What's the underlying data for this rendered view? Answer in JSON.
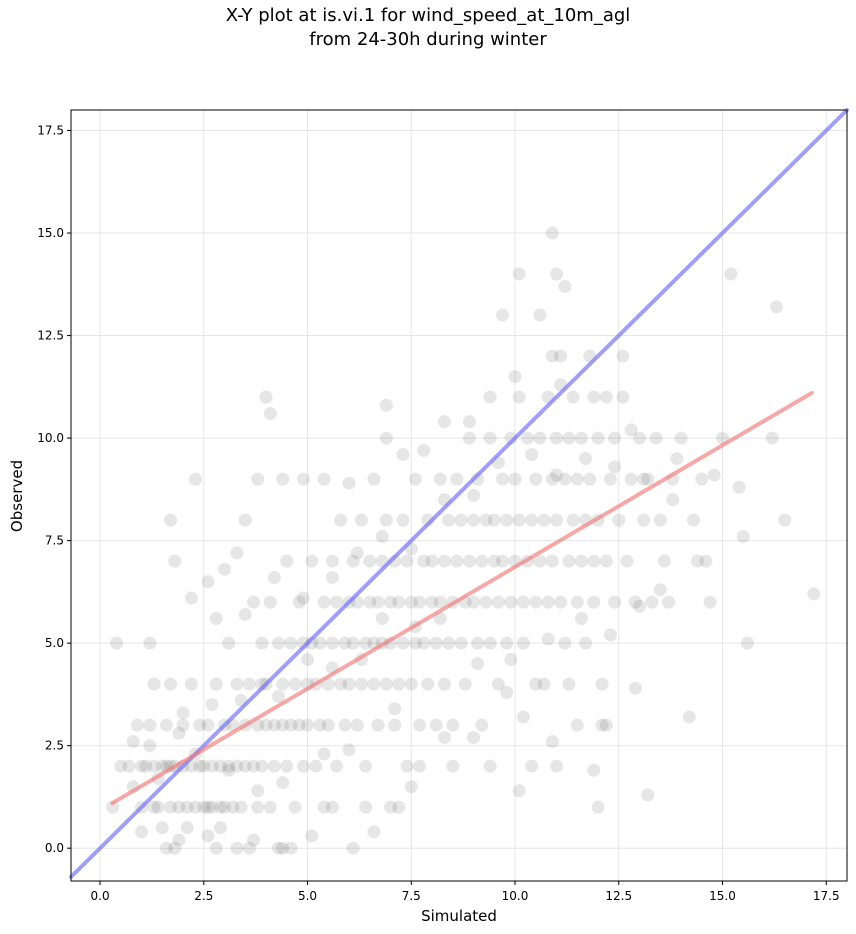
{
  "chart_data": {
    "type": "scatter",
    "title": "X-Y plot at is.vi.1 for wind_speed_at_10m_agl",
    "subtitle": "from 24-30h during winter",
    "xlabel": "Simulated",
    "ylabel": "Observed",
    "xlim": [
      -0.7,
      18.0
    ],
    "ylim": [
      -0.8,
      18.0
    ],
    "xticks": [
      0.0,
      2.5,
      5.0,
      7.5,
      10.0,
      12.5,
      15.0,
      17.5
    ],
    "yticks": [
      0.0,
      2.5,
      5.0,
      7.5,
      10.0,
      12.5,
      15.0,
      17.5
    ],
    "xtick_labels": [
      "0.0",
      "2.5",
      "5.0",
      "7.5",
      "10.0",
      "12.5",
      "15.0",
      "17.5"
    ],
    "ytick_labels": [
      "0.0",
      "2.5",
      "5.0",
      "7.5",
      "10.0",
      "12.5",
      "15.0",
      "17.5"
    ],
    "grid": true,
    "colors": {
      "points": "#3a3a3a",
      "identity_line": "#6b6bf0",
      "fit_line": "#f07a7a"
    },
    "reference_lines": [
      {
        "kind": "identity",
        "x": [
          -0.7,
          18.0
        ],
        "y": [
          -0.7,
          18.0
        ]
      },
      {
        "kind": "fit",
        "x": [
          0.3,
          17.15
        ],
        "y": [
          1.1,
          11.1
        ]
      }
    ],
    "points": [
      [
        0.3,
        1.0
      ],
      [
        0.5,
        2.0
      ],
      [
        0.7,
        2.0
      ],
      [
        0.8,
        1.5
      ],
      [
        0.9,
        3.0
      ],
      [
        1.0,
        2.0
      ],
      [
        1.0,
        1.0
      ],
      [
        1.1,
        2.0
      ],
      [
        1.2,
        3.0
      ],
      [
        1.3,
        2.0
      ],
      [
        1.3,
        1.0
      ],
      [
        1.4,
        1.0
      ],
      [
        1.5,
        2.0
      ],
      [
        1.5,
        0.5
      ],
      [
        1.6,
        2.0
      ],
      [
        1.6,
        3.0
      ],
      [
        1.7,
        2.0
      ],
      [
        1.7,
        1.0
      ],
      [
        1.8,
        0.0
      ],
      [
        1.8,
        2.0
      ],
      [
        1.9,
        1.0
      ],
      [
        2.0,
        2.0
      ],
      [
        2.0,
        3.0
      ],
      [
        2.1,
        1.0
      ],
      [
        2.2,
        2.0
      ],
      [
        2.2,
        4.0
      ],
      [
        2.3,
        1.0
      ],
      [
        2.4,
        2.0
      ],
      [
        2.4,
        3.0
      ],
      [
        2.5,
        1.0
      ],
      [
        2.5,
        2.0
      ],
      [
        2.6,
        1.0
      ],
      [
        2.6,
        3.0
      ],
      [
        2.7,
        2.0
      ],
      [
        2.7,
        1.0
      ],
      [
        2.8,
        0.0
      ],
      [
        2.8,
        4.0
      ],
      [
        2.9,
        1.0
      ],
      [
        2.9,
        2.0
      ],
      [
        3.0,
        3.0
      ],
      [
        3.0,
        1.0
      ],
      [
        3.1,
        2.0
      ],
      [
        3.1,
        5.0
      ],
      [
        3.2,
        1.0
      ],
      [
        3.2,
        3.0
      ],
      [
        3.3,
        2.0
      ],
      [
        3.3,
        4.0
      ],
      [
        3.4,
        1.0
      ],
      [
        3.5,
        3.0
      ],
      [
        3.5,
        2.0
      ],
      [
        3.6,
        0.0
      ],
      [
        3.6,
        4.0
      ],
      [
        3.7,
        2.0
      ],
      [
        3.7,
        6.0
      ],
      [
        3.8,
        3.0
      ],
      [
        3.8,
        1.0
      ],
      [
        3.9,
        2.0
      ],
      [
        3.9,
        5.0
      ],
      [
        4.0,
        3.0
      ],
      [
        4.0,
        4.0
      ],
      [
        4.1,
        1.0
      ],
      [
        4.1,
        6.0
      ],
      [
        4.2,
        2.0
      ],
      [
        4.2,
        3.0
      ],
      [
        4.3,
        5.0
      ],
      [
        4.3,
        0.0
      ],
      [
        4.4,
        3.0
      ],
      [
        4.4,
        4.0
      ],
      [
        4.5,
        2.0
      ],
      [
        4.5,
        7.0
      ],
      [
        4.6,
        3.0
      ],
      [
        4.6,
        5.0
      ],
      [
        4.7,
        1.0
      ],
      [
        4.7,
        4.0
      ],
      [
        4.8,
        3.0
      ],
      [
        4.8,
        6.0
      ],
      [
        4.9,
        2.0
      ],
      [
        4.9,
        5.0
      ],
      [
        5.0,
        4.0
      ],
      [
        5.0,
        3.0
      ],
      [
        5.1,
        5.0
      ],
      [
        5.1,
        7.0
      ],
      [
        5.2,
        2.0
      ],
      [
        5.2,
        4.0
      ],
      [
        5.3,
        3.0
      ],
      [
        5.3,
        5.0
      ],
      [
        5.4,
        6.0
      ],
      [
        5.4,
        1.0
      ],
      [
        5.5,
        4.0
      ],
      [
        5.5,
        3.0
      ],
      [
        5.6,
        5.0
      ],
      [
        5.6,
        7.0
      ],
      [
        5.7,
        2.0
      ],
      [
        5.7,
        6.0
      ],
      [
        5.8,
        4.0
      ],
      [
        5.8,
        8.0
      ],
      [
        5.9,
        5.0
      ],
      [
        5.9,
        3.0
      ],
      [
        6.0,
        6.0
      ],
      [
        6.0,
        4.0
      ],
      [
        6.1,
        5.0
      ],
      [
        6.1,
        7.0
      ],
      [
        6.2,
        3.0
      ],
      [
        6.2,
        6.0
      ],
      [
        6.3,
        4.0
      ],
      [
        6.3,
        8.0
      ],
      [
        6.4,
        5.0
      ],
      [
        6.4,
        2.0
      ],
      [
        6.5,
        6.0
      ],
      [
        6.5,
        7.0
      ],
      [
        6.6,
        4.0
      ],
      [
        6.6,
        5.0
      ],
      [
        6.7,
        6.0
      ],
      [
        6.7,
        3.0
      ],
      [
        6.8,
        7.0
      ],
      [
        6.8,
        5.0
      ],
      [
        6.9,
        4.0
      ],
      [
        6.9,
        8.0
      ],
      [
        7.0,
        6.0
      ],
      [
        7.0,
        5.0
      ],
      [
        7.1,
        7.0
      ],
      [
        7.1,
        3.0
      ],
      [
        7.2,
        4.0
      ],
      [
        7.2,
        6.0
      ],
      [
        7.3,
        5.0
      ],
      [
        7.3,
        8.0
      ],
      [
        7.4,
        7.0
      ],
      [
        7.4,
        2.0
      ],
      [
        7.5,
        6.0
      ],
      [
        7.5,
        4.0
      ],
      [
        7.6,
        5.0
      ],
      [
        7.6,
        9.0
      ],
      [
        7.7,
        6.0
      ],
      [
        7.7,
        3.0
      ],
      [
        7.8,
        7.0
      ],
      [
        7.8,
        5.0
      ],
      [
        7.9,
        4.0
      ],
      [
        7.9,
        8.0
      ],
      [
        8.0,
        6.0
      ],
      [
        8.0,
        7.0
      ],
      [
        8.1,
        5.0
      ],
      [
        8.1,
        3.0
      ],
      [
        8.2,
        6.0
      ],
      [
        8.2,
        9.0
      ],
      [
        8.3,
        7.0
      ],
      [
        8.3,
        4.0
      ],
      [
        8.4,
        8.0
      ],
      [
        8.4,
        5.0
      ],
      [
        8.5,
        6.0
      ],
      [
        8.5,
        3.0
      ],
      [
        8.6,
        7.0
      ],
      [
        8.6,
        9.0
      ],
      [
        8.7,
        5.0
      ],
      [
        8.7,
        8.0
      ],
      [
        8.8,
        6.0
      ],
      [
        8.8,
        4.0
      ],
      [
        8.9,
        7.0
      ],
      [
        8.9,
        10.0
      ],
      [
        9.0,
        8.0
      ],
      [
        9.0,
        6.0
      ],
      [
        9.1,
        5.0
      ],
      [
        9.1,
        9.0
      ],
      [
        9.2,
        7.0
      ],
      [
        9.2,
        3.0
      ],
      [
        9.3,
        8.0
      ],
      [
        9.3,
        6.0
      ],
      [
        9.4,
        10.0
      ],
      [
        9.4,
        5.0
      ],
      [
        9.5,
        7.0
      ],
      [
        9.5,
        8.0
      ],
      [
        9.6,
        6.0
      ],
      [
        9.6,
        4.0
      ],
      [
        9.7,
        9.0
      ],
      [
        9.7,
        7.0
      ],
      [
        9.8,
        8.0
      ],
      [
        9.8,
        5.0
      ],
      [
        9.9,
        10.0
      ],
      [
        9.9,
        6.0
      ],
      [
        10.0,
        7.0
      ],
      [
        10.0,
        9.0
      ],
      [
        10.1,
        8.0
      ],
      [
        10.1,
        11.0
      ],
      [
        10.2,
        6.0
      ],
      [
        10.2,
        5.0
      ],
      [
        10.3,
        10.0
      ],
      [
        10.3,
        7.0
      ],
      [
        10.4,
        8.0
      ],
      [
        10.4,
        2.0
      ],
      [
        10.5,
        9.0
      ],
      [
        10.5,
        6.0
      ],
      [
        10.6,
        10.0
      ],
      [
        10.6,
        7.0
      ],
      [
        10.7,
        8.0
      ],
      [
        10.7,
        4.0
      ],
      [
        10.8,
        11.0
      ],
      [
        10.8,
        6.0
      ],
      [
        10.9,
        9.0
      ],
      [
        10.9,
        7.0
      ],
      [
        11.0,
        10.0
      ],
      [
        11.0,
        8.0
      ],
      [
        11.1,
        6.0
      ],
      [
        11.1,
        12.0
      ],
      [
        11.2,
        9.0
      ],
      [
        11.2,
        5.0
      ],
      [
        11.3,
        7.0
      ],
      [
        11.3,
        10.0
      ],
      [
        11.4,
        8.0
      ],
      [
        11.4,
        11.0
      ],
      [
        11.5,
        6.0
      ],
      [
        11.5,
        9.0
      ],
      [
        11.6,
        7.0
      ],
      [
        11.6,
        10.0
      ],
      [
        11.7,
        8.0
      ],
      [
        11.7,
        5.0
      ],
      [
        11.8,
        9.0
      ],
      [
        11.8,
        12.0
      ],
      [
        11.9,
        7.0
      ],
      [
        11.9,
        6.0
      ],
      [
        12.0,
        10.0
      ],
      [
        12.0,
        8.0
      ],
      [
        12.1,
        4.0
      ],
      [
        12.2,
        11.0
      ],
      [
        12.2,
        7.0
      ],
      [
        12.3,
        9.0
      ],
      [
        12.4,
        6.0
      ],
      [
        12.4,
        10.0
      ],
      [
        12.5,
        8.0
      ],
      [
        12.6,
        12.0
      ],
      [
        12.7,
        7.0
      ],
      [
        12.8,
        9.0
      ],
      [
        12.9,
        6.0
      ],
      [
        13.0,
        10.0
      ],
      [
        13.1,
        8.0
      ],
      [
        13.2,
        9.0
      ],
      [
        13.3,
        6.0
      ],
      [
        13.4,
        10.0
      ],
      [
        13.5,
        8.0
      ],
      [
        13.6,
        7.0
      ],
      [
        13.7,
        6.0
      ],
      [
        13.8,
        9.0
      ],
      [
        14.0,
        10.0
      ],
      [
        14.2,
        3.2
      ],
      [
        14.3,
        8.0
      ],
      [
        14.5,
        9.0
      ],
      [
        14.7,
        6.0
      ],
      [
        15.0,
        10.0
      ],
      [
        15.2,
        14.0
      ],
      [
        15.4,
        8.8
      ],
      [
        15.6,
        5.0
      ],
      [
        16.2,
        10.0
      ],
      [
        16.3,
        13.2
      ],
      [
        16.5,
        8.0
      ],
      [
        17.2,
        6.2
      ],
      [
        10.1,
        14.0
      ],
      [
        10.6,
        13.0
      ],
      [
        10.9,
        15.0
      ],
      [
        11.0,
        14.0
      ],
      [
        11.2,
        13.7
      ],
      [
        9.7,
        13.0
      ],
      [
        10.9,
        12.0
      ],
      [
        4.0,
        11.0
      ],
      [
        4.1,
        10.6
      ],
      [
        6.9,
        10.8
      ],
      [
        6.9,
        10.0
      ],
      [
        2.3,
        9.0
      ],
      [
        1.7,
        8.0
      ],
      [
        3.0,
        6.8
      ],
      [
        2.2,
        6.1
      ],
      [
        1.8,
        7.0
      ],
      [
        0.4,
        5.0
      ],
      [
        1.2,
        5.0
      ],
      [
        1.3,
        4.0
      ],
      [
        1.7,
        4.0
      ],
      [
        2.0,
        3.3
      ],
      [
        0.8,
        2.6
      ],
      [
        1.2,
        2.5
      ],
      [
        1.4,
        1.7
      ],
      [
        1.6,
        0.0
      ],
      [
        2.1,
        0.5
      ],
      [
        2.9,
        0.5
      ],
      [
        3.3,
        0.0
      ],
      [
        4.4,
        0.0
      ],
      [
        5.1,
        0.3
      ],
      [
        6.1,
        0.0
      ],
      [
        6.6,
        0.4
      ],
      [
        7.2,
        1.0
      ],
      [
        7.5,
        1.5
      ],
      [
        12.0,
        1.0
      ],
      [
        13.2,
        1.3
      ],
      [
        10.1,
        1.4
      ],
      [
        11.0,
        2.0
      ],
      [
        11.9,
        1.9
      ],
      [
        12.9,
        3.9
      ],
      [
        12.1,
        3.0
      ],
      [
        10.9,
        2.6
      ],
      [
        11.5,
        3.0
      ],
      [
        10.2,
        3.2
      ],
      [
        9.4,
        2.0
      ],
      [
        8.5,
        2.0
      ],
      [
        7.1,
        3.4
      ],
      [
        6.0,
        2.4
      ],
      [
        5.4,
        2.3
      ],
      [
        4.4,
        1.6
      ],
      [
        3.8,
        1.4
      ],
      [
        3.1,
        1.9
      ],
      [
        2.3,
        2.3
      ],
      [
        1.9,
        2.8
      ],
      [
        2.7,
        3.5
      ],
      [
        3.4,
        3.6
      ],
      [
        3.9,
        4.0
      ],
      [
        4.3,
        3.7
      ],
      [
        5.0,
        4.6
      ],
      [
        5.6,
        4.4
      ],
      [
        6.3,
        4.6
      ],
      [
        6.8,
        5.6
      ],
      [
        7.6,
        5.4
      ],
      [
        8.2,
        5.6
      ],
      [
        9.1,
        4.5
      ],
      [
        9.9,
        4.6
      ],
      [
        10.8,
        5.1
      ],
      [
        11.6,
        5.6
      ],
      [
        12.3,
        5.2
      ],
      [
        13.0,
        5.9
      ],
      [
        13.5,
        6.3
      ],
      [
        14.4,
        7.0
      ],
      [
        15.5,
        7.6
      ],
      [
        14.8,
        9.1
      ],
      [
        13.9,
        9.5
      ],
      [
        12.8,
        10.2
      ],
      [
        12.6,
        11.0
      ],
      [
        11.9,
        11.0
      ],
      [
        11.1,
        11.3
      ],
      [
        10.0,
        11.5
      ],
      [
        9.4,
        11.0
      ],
      [
        8.9,
        10.4
      ],
      [
        8.3,
        10.4
      ],
      [
        7.8,
        9.7
      ],
      [
        7.3,
        9.6
      ],
      [
        6.6,
        9.0
      ],
      [
        6.0,
        8.9
      ],
      [
        5.4,
        9.0
      ],
      [
        4.9,
        9.0
      ],
      [
        4.4,
        9.0
      ],
      [
        3.8,
        9.0
      ],
      [
        3.5,
        8.0
      ],
      [
        3.3,
        7.2
      ],
      [
        2.6,
        6.5
      ],
      [
        2.8,
        5.6
      ],
      [
        3.5,
        5.7
      ],
      [
        4.2,
        6.6
      ],
      [
        4.9,
        6.1
      ],
      [
        5.6,
        6.6
      ],
      [
        6.2,
        7.2
      ],
      [
        6.8,
        7.6
      ],
      [
        7.5,
        7.3
      ],
      [
        8.3,
        8.5
      ],
      [
        9.0,
        8.6
      ],
      [
        9.6,
        9.4
      ],
      [
        10.4,
        9.6
      ],
      [
        11.0,
        9.1
      ],
      [
        11.7,
        9.5
      ],
      [
        12.4,
        9.3
      ],
      [
        13.1,
        9.0
      ],
      [
        13.8,
        8.5
      ],
      [
        14.6,
        7.0
      ],
      [
        1.0,
        0.4
      ],
      [
        1.9,
        0.2
      ],
      [
        2.6,
        0.3
      ],
      [
        3.7,
        0.2
      ],
      [
        4.6,
        0.0
      ],
      [
        5.6,
        1.0
      ],
      [
        6.4,
        1.0
      ],
      [
        7.0,
        1.0
      ],
      [
        7.7,
        2.0
      ],
      [
        8.3,
        2.7
      ],
      [
        9.0,
        2.7
      ],
      [
        9.8,
        3.8
      ],
      [
        10.5,
        4.0
      ],
      [
        11.3,
        4.0
      ],
      [
        12.2,
        3.0
      ]
    ]
  }
}
